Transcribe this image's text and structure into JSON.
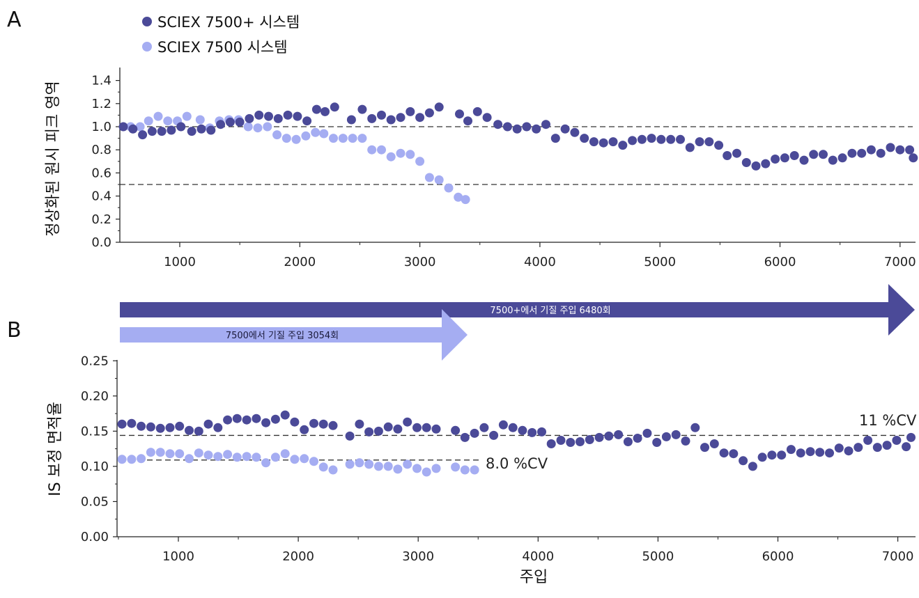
{
  "panels": {
    "a_label": "A",
    "b_label": "B"
  },
  "legend": [
    {
      "label": "SCIEX 7500+ 시스템",
      "color": "#4b4a98"
    },
    {
      "label": "SCIEX 7500 시스템",
      "color": "#a5adf2"
    }
  ],
  "arrows": [
    {
      "label": "7500+에서 기질 주입 6480회",
      "color": "#4b4a98",
      "text_color": "#ffffff",
      "end_injection": 7100
    },
    {
      "label": "7500에서 기질 주입 3054회",
      "color": "#a5adf2",
      "text_color": "#1a1a3a",
      "end_injection": 3400
    }
  ],
  "cv_labels": {
    "plus": "11 %CV",
    "classic": "8.0 %CV"
  },
  "chart_data": [
    {
      "type": "scatter",
      "panel": "A",
      "title": "",
      "xlabel": "",
      "ylabel": "정상화된 원시 피크 영역",
      "xlim": [
        500,
        7120
      ],
      "ylim": [
        0.0,
        1.5
      ],
      "xticks": [
        "1000",
        "2000",
        "3000",
        "4000",
        "5000",
        "6000",
        "7000"
      ],
      "yticks": [
        "0.0",
        "0.2",
        "0.4",
        "0.6",
        "0.8",
        "1.0",
        "1.2",
        "1.4"
      ],
      "reference_lines": [
        1.0,
        0.5
      ],
      "series": [
        {
          "name": "SCIEX 7500+ 시스템",
          "color": "#4b4a98",
          "x": [
            530,
            610,
            690,
            770,
            850,
            930,
            1010,
            1100,
            1180,
            1260,
            1340,
            1420,
            1500,
            1580,
            1660,
            1740,
            1820,
            1900,
            1980,
            2060,
            2140,
            2210,
            2290,
            2430,
            2520,
            2600,
            2680,
            2760,
            2840,
            2920,
            3000,
            3080,
            3160,
            3330,
            3400,
            3480,
            3560,
            3650,
            3730,
            3810,
            3890,
            3970,
            4050,
            4130,
            4210,
            4290,
            4370,
            4450,
            4530,
            4610,
            4690,
            4770,
            4850,
            4930,
            5010,
            5090,
            5170,
            5250,
            5330,
            5410,
            5490,
            5560,
            5640,
            5720,
            5800,
            5880,
            5960,
            6040,
            6120,
            6200,
            6280,
            6360,
            6440,
            6520,
            6600,
            6680,
            6760,
            6840,
            6920,
            7000,
            7080,
            7110
          ],
          "y": [
            1.0,
            0.98,
            0.93,
            0.96,
            0.96,
            0.97,
            1.0,
            0.96,
            0.98,
            0.97,
            1.02,
            1.04,
            1.04,
            1.07,
            1.1,
            1.09,
            1.07,
            1.1,
            1.09,
            1.05,
            1.15,
            1.13,
            1.17,
            1.06,
            1.15,
            1.07,
            1.1,
            1.06,
            1.08,
            1.13,
            1.08,
            1.12,
            1.17,
            1.11,
            1.05,
            1.13,
            1.08,
            1.02,
            1.0,
            0.98,
            1.0,
            0.98,
            1.02,
            0.9,
            0.98,
            0.95,
            0.9,
            0.87,
            0.86,
            0.87,
            0.84,
            0.88,
            0.89,
            0.9,
            0.89,
            0.89,
            0.89,
            0.82,
            0.87,
            0.87,
            0.84,
            0.75,
            0.77,
            0.69,
            0.66,
            0.68,
            0.72,
            0.73,
            0.75,
            0.71,
            0.76,
            0.76,
            0.71,
            0.73,
            0.77,
            0.77,
            0.8,
            0.77,
            0.82,
            0.8,
            0.8,
            0.73
          ]
        },
        {
          "name": "SCIEX 7500 시스템",
          "color": "#a5adf2",
          "x": [
            590,
            670,
            740,
            820,
            900,
            980,
            1060,
            1170,
            1250,
            1330,
            1410,
            1490,
            1570,
            1650,
            1730,
            1810,
            1890,
            1970,
            2050,
            2130,
            2200,
            2280,
            2360,
            2440,
            2520,
            2600,
            2680,
            2760,
            2840,
            2920,
            3000,
            3080,
            3160,
            3240,
            3320,
            3380
          ],
          "y": [
            1.0,
            1.0,
            1.05,
            1.09,
            1.05,
            1.05,
            1.09,
            1.06,
            0.99,
            1.05,
            1.06,
            1.06,
            1.0,
            0.99,
            1.0,
            0.93,
            0.9,
            0.89,
            0.92,
            0.95,
            0.94,
            0.9,
            0.9,
            0.9,
            0.9,
            0.8,
            0.8,
            0.74,
            0.77,
            0.76,
            0.7,
            0.56,
            0.54,
            0.47,
            0.39,
            0.37
          ]
        }
      ]
    },
    {
      "type": "scatter",
      "panel": "B",
      "title": "",
      "xlabel": "주입",
      "ylabel": "IS 보정 면적율",
      "xlim": [
        500,
        7120
      ],
      "ylim": [
        0.0,
        0.25
      ],
      "xticks": [
        "1000",
        "2000",
        "3000",
        "4000",
        "5000",
        "6000",
        "7000"
      ],
      "yticks": [
        "0.00",
        "0.05",
        "0.10",
        "0.15",
        "0.20",
        "0.25"
      ],
      "reference_lines": [
        0.144,
        0.109
      ],
      "series": [
        {
          "name": "SCIEX 7500+ 시스템",
          "color": "#4b4a98",
          "x": [
            530,
            610,
            690,
            770,
            850,
            930,
            1010,
            1090,
            1170,
            1250,
            1330,
            1410,
            1490,
            1570,
            1650,
            1730,
            1810,
            1890,
            1970,
            2050,
            2130,
            2210,
            2290,
            2430,
            2510,
            2590,
            2670,
            2750,
            2830,
            2910,
            2990,
            3070,
            3150,
            3310,
            3390,
            3470,
            3550,
            3630,
            3710,
            3790,
            3870,
            3950,
            4030,
            4110,
            4190,
            4270,
            4350,
            4430,
            4510,
            4590,
            4670,
            4750,
            4830,
            4910,
            4990,
            5070,
            5150,
            5230,
            5310,
            5390,
            5470,
            5550,
            5630,
            5710,
            5790,
            5870,
            5950,
            6030,
            6110,
            6190,
            6270,
            6350,
            6430,
            6510,
            6590,
            6670,
            6750,
            6830,
            6910,
            6990,
            7070,
            7110
          ],
          "y": [
            0.16,
            0.161,
            0.157,
            0.156,
            0.154,
            0.155,
            0.157,
            0.151,
            0.15,
            0.16,
            0.155,
            0.166,
            0.168,
            0.166,
            0.168,
            0.162,
            0.167,
            0.173,
            0.163,
            0.152,
            0.161,
            0.16,
            0.158,
            0.143,
            0.16,
            0.149,
            0.15,
            0.156,
            0.153,
            0.163,
            0.155,
            0.155,
            0.153,
            0.151,
            0.141,
            0.147,
            0.155,
            0.144,
            0.159,
            0.155,
            0.151,
            0.148,
            0.149,
            0.132,
            0.137,
            0.134,
            0.135,
            0.138,
            0.141,
            0.143,
            0.145,
            0.135,
            0.14,
            0.147,
            0.134,
            0.142,
            0.145,
            0.136,
            0.155,
            0.127,
            0.132,
            0.119,
            0.118,
            0.108,
            0.1,
            0.113,
            0.116,
            0.116,
            0.124,
            0.119,
            0.121,
            0.12,
            0.119,
            0.126,
            0.122,
            0.127,
            0.137,
            0.127,
            0.13,
            0.137,
            0.128,
            0.141
          ]
        },
        {
          "name": "SCIEX 7500 시스템",
          "color": "#a5adf2",
          "x": [
            530,
            610,
            690,
            770,
            850,
            930,
            1010,
            1090,
            1170,
            1250,
            1330,
            1410,
            1490,
            1570,
            1650,
            1730,
            1810,
            1890,
            1970,
            2050,
            2130,
            2210,
            2290,
            2430,
            2510,
            2590,
            2670,
            2750,
            2830,
            2910,
            2990,
            3070,
            3150,
            3310,
            3390,
            3470
          ],
          "y": [
            0.11,
            0.11,
            0.111,
            0.12,
            0.12,
            0.118,
            0.118,
            0.111,
            0.119,
            0.116,
            0.114,
            0.117,
            0.113,
            0.114,
            0.113,
            0.105,
            0.113,
            0.118,
            0.11,
            0.111,
            0.107,
            0.099,
            0.095,
            0.103,
            0.105,
            0.103,
            0.1,
            0.1,
            0.096,
            0.103,
            0.097,
            0.092,
            0.097,
            0.099,
            0.095,
            0.095
          ]
        }
      ]
    }
  ]
}
